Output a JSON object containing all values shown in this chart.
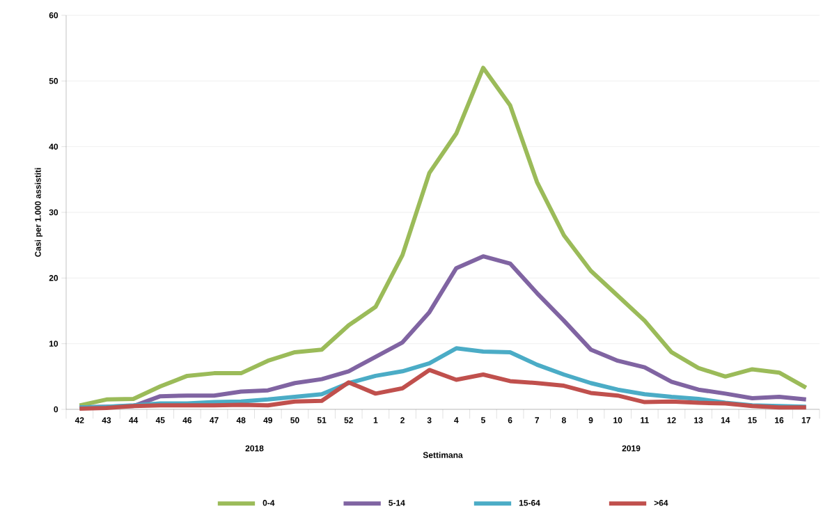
{
  "chart_data": {
    "type": "line",
    "xlabel": "Settimana",
    "ylabel": "Casi per 1.000 assistiti",
    "categories": [
      "42",
      "43",
      "44",
      "45",
      "46",
      "47",
      "48",
      "49",
      "50",
      "51",
      "52",
      "1",
      "2",
      "3",
      "4",
      "5",
      "6",
      "7",
      "8",
      "9",
      "10",
      "11",
      "12",
      "13",
      "14",
      "15",
      "16",
      "17"
    ],
    "series": [
      {
        "name": "0-4",
        "color": "#9bbb59",
        "values": [
          0.6,
          1.5,
          1.6,
          3.5,
          5.1,
          5.5,
          5.5,
          7.4,
          8.7,
          9.1,
          12.8,
          15.6,
          23.5,
          36.0,
          42.0,
          52.0,
          46.3,
          34.6,
          26.5,
          21.1,
          17.3,
          13.5,
          8.7,
          6.3,
          5.0,
          6.1,
          5.6,
          3.3
        ]
      },
      {
        "name": "5-14",
        "color": "#8064a2",
        "values": [
          0.3,
          0.4,
          0.5,
          2.0,
          2.1,
          2.1,
          2.7,
          2.9,
          4.0,
          4.6,
          5.8,
          8.0,
          10.2,
          14.8,
          21.5,
          23.3,
          22.2,
          17.7,
          13.5,
          9.1,
          7.4,
          6.4,
          4.2,
          3.0,
          2.4,
          1.7,
          1.9,
          1.5
        ]
      },
      {
        "name": "15-64",
        "color": "#4bacc6",
        "values": [
          0.3,
          0.4,
          0.6,
          0.9,
          0.9,
          1.1,
          1.2,
          1.5,
          1.9,
          2.3,
          4.0,
          5.1,
          5.8,
          7.0,
          9.3,
          8.8,
          8.7,
          6.8,
          5.3,
          4.0,
          3.0,
          2.3,
          1.9,
          1.6,
          1.0,
          0.6,
          0.5,
          0.4
        ]
      },
      {
        "name": ">64",
        "color": "#c0504d",
        "values": [
          0.1,
          0.2,
          0.5,
          0.6,
          0.6,
          0.6,
          0.7,
          0.6,
          1.2,
          1.3,
          4.1,
          2.4,
          3.2,
          6.0,
          4.5,
          5.3,
          4.3,
          4.0,
          3.6,
          2.5,
          2.1,
          1.1,
          1.2,
          1.0,
          0.9,
          0.5,
          0.3,
          0.3
        ]
      }
    ],
    "ylim": [
      0,
      60
    ],
    "yticks": [
      0,
      10,
      20,
      30,
      40,
      50,
      60
    ],
    "grid": "y",
    "legend": "bottom",
    "marker": "none",
    "line_style": "solid",
    "annotations": [
      "2018",
      "2019"
    ]
  }
}
